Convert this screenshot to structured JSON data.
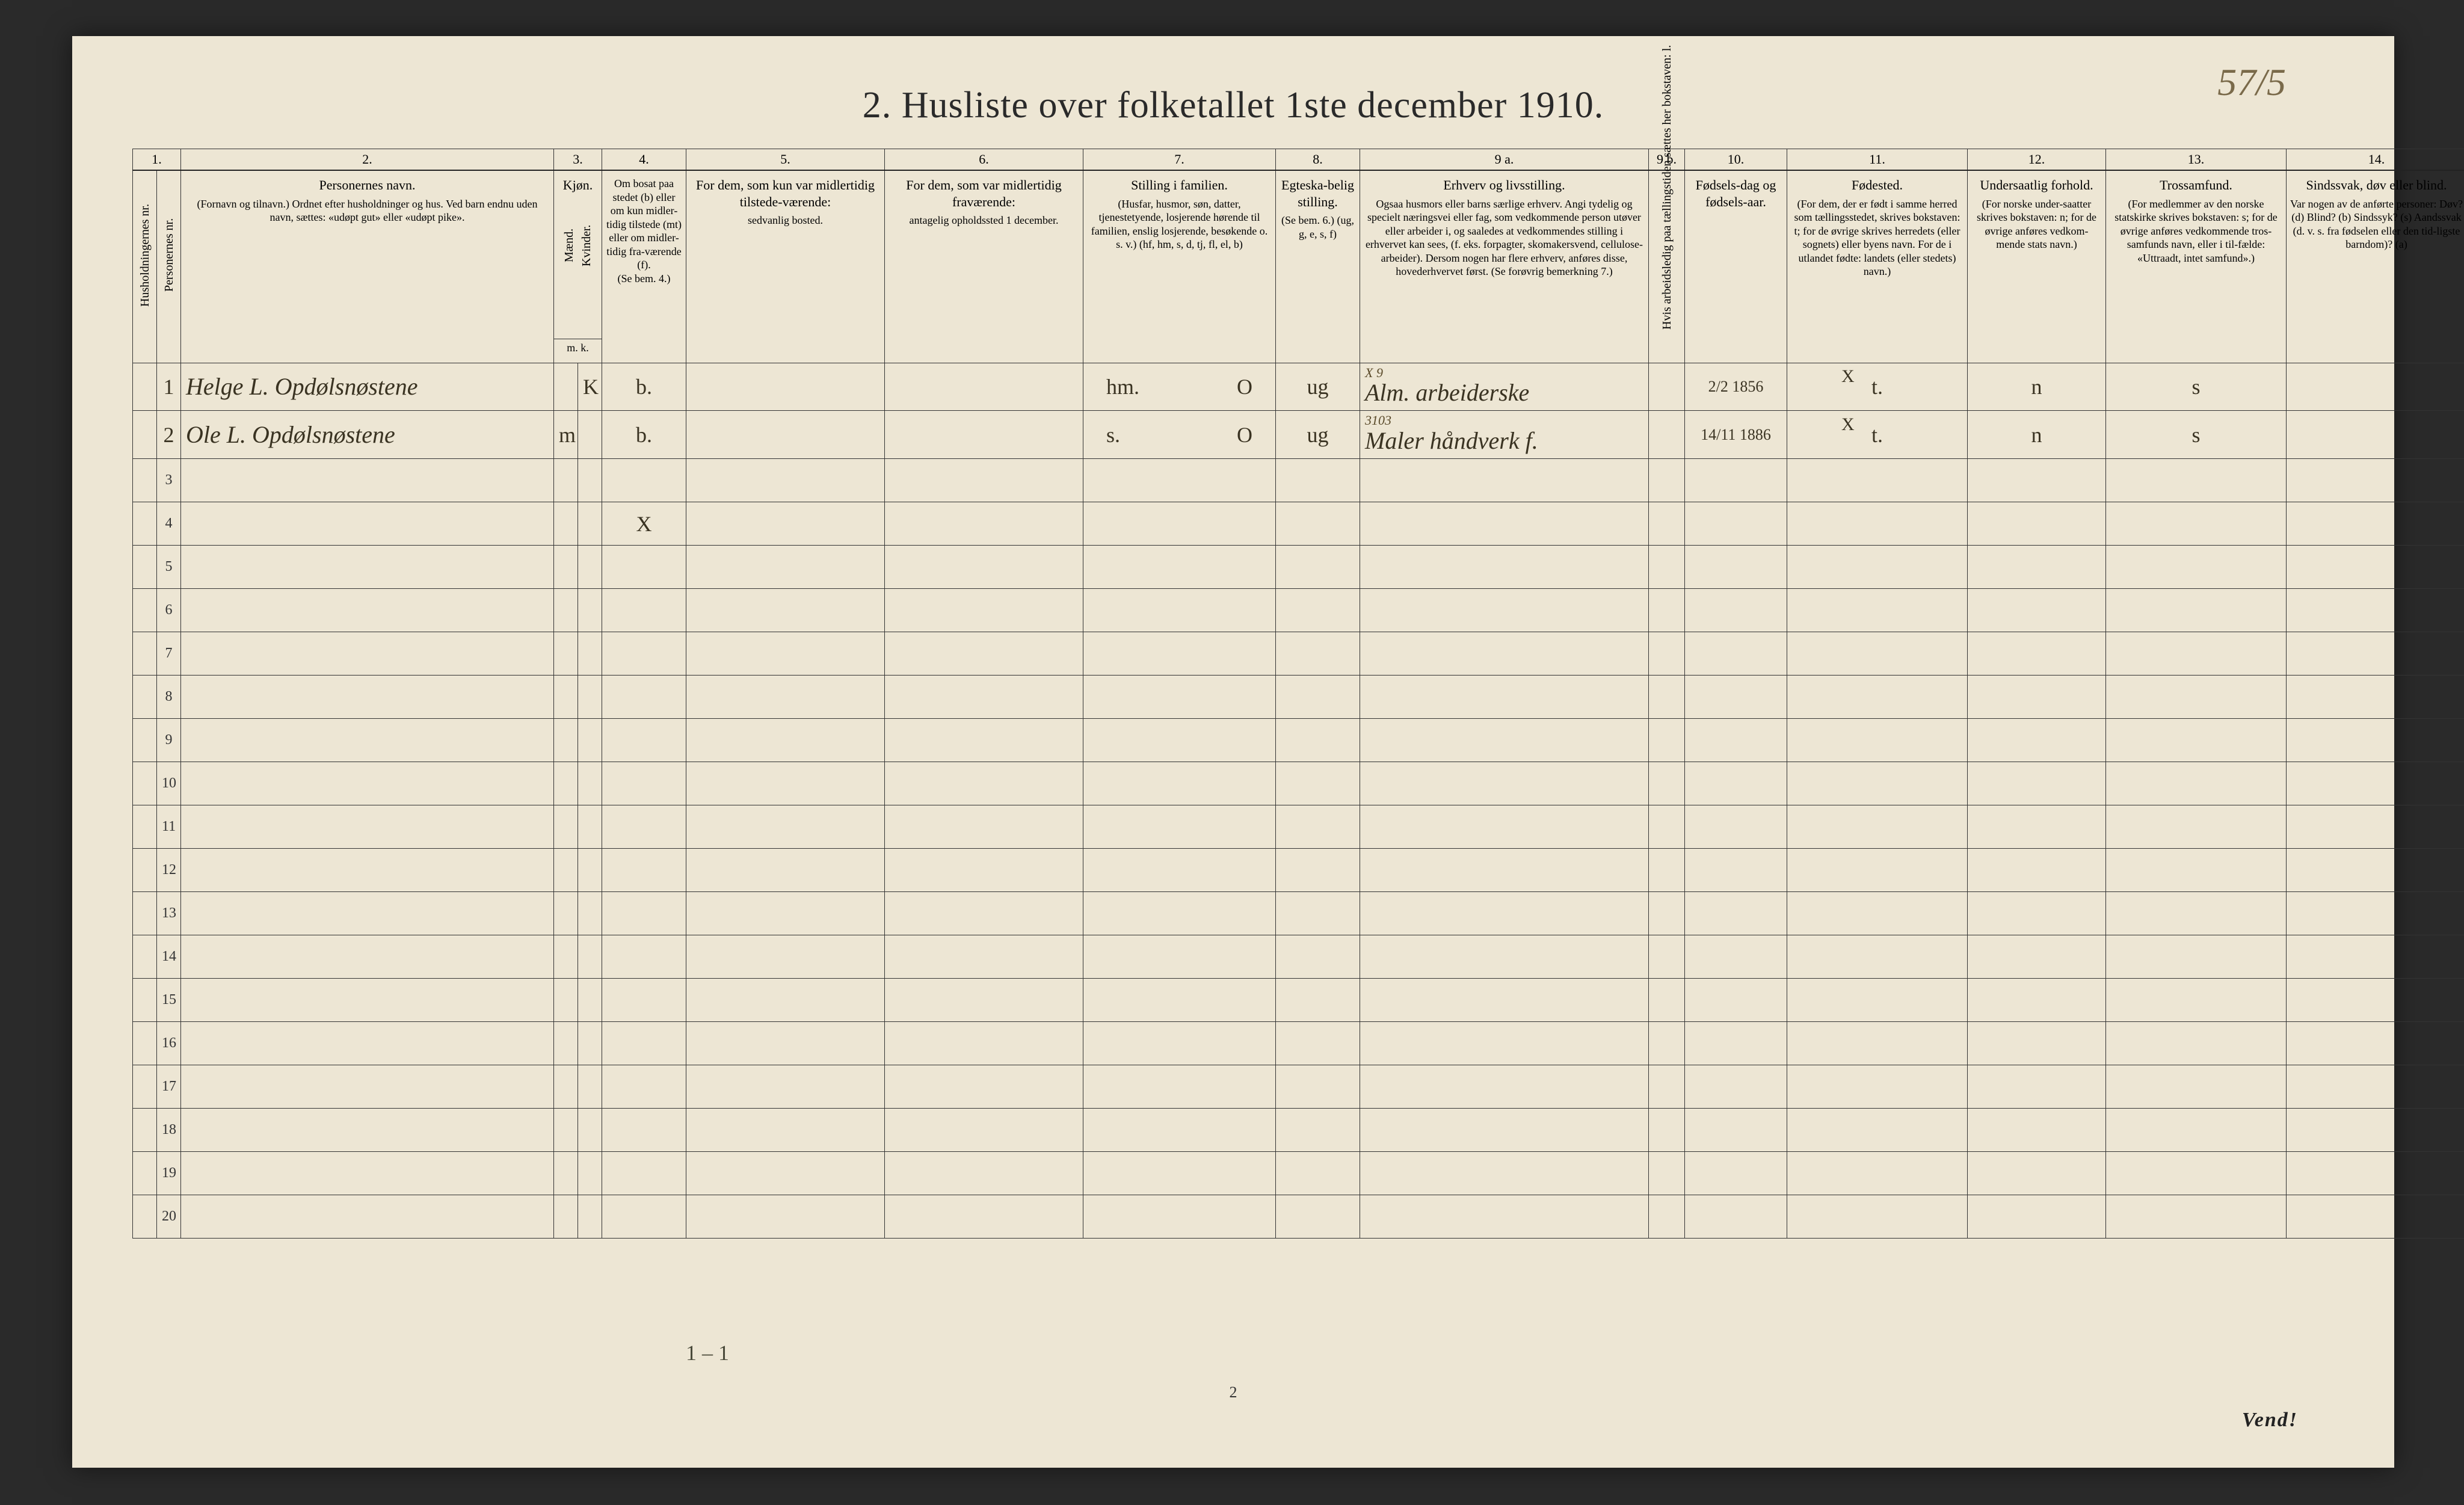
{
  "page": {
    "corner_note": "57/5",
    "title": "2.  Husliste over folketallet 1ste december 1910.",
    "footer_page": "2",
    "footer_vend": "Vend!",
    "tally": "1 – 1"
  },
  "colors": {
    "paper": "#ede6d4",
    "ink": "#2a2a2a",
    "handwriting": "#3a3322",
    "pencil": "#7a6a4a",
    "rule": "#333333"
  },
  "columns": {
    "numbers": [
      "1.",
      "",
      "2.",
      "3.",
      "",
      "4.",
      "5.",
      "6.",
      "7.",
      "8.",
      "9 a.",
      "9 b.",
      "10.",
      "11.",
      "12.",
      "13.",
      "14."
    ],
    "headers": {
      "c1": "Husholdningernes nr.",
      "c1b": "Personernes nr.",
      "c2_main": "Personernes navn.",
      "c2_sub": "(Fornavn og tilnavn.)\nOrdnet efter husholdninger og hus.\nVed barn endnu uden navn, sættes: «udøpt gut» eller «udøpt pike».",
      "c3_main": "Kjøn.",
      "c3_m": "Mænd.",
      "c3_k": "Kvinder.",
      "c3_mk": "m.  k.",
      "c4_main": "Om bosat paa stedet (b) eller om kun midler-tidig tilstede (mt) eller om midler-tidig fra-værende (f).",
      "c4_sub": "(Se bem. 4.)",
      "c5_main": "For dem, som kun var midlertidig tilstede-værende:",
      "c5_sub": "sedvanlig bosted.",
      "c6_main": "For dem, som var midlertidig fraværende:",
      "c6_sub": "antagelig opholdssted 1 december.",
      "c7_main": "Stilling i familien.",
      "c7_sub": "(Husfar, husmor, søn, datter, tjenestetyende, losjerende hørende til familien, enslig losjerende, besøkende o. s. v.)\n(hf, hm, s, d, tj, fl, el, b)",
      "c8_main": "Egteska-belig stilling.",
      "c8_sub": "(Se bem. 6.)\n(ug, g, e, s, f)",
      "c9a_main": "Erhverv og livsstilling.",
      "c9a_sub": "Ogsaa husmors eller barns særlige erhverv. Angi tydelig og specielt næringsvei eller fag, som vedkommende person utøver eller arbeider i, og saaledes at vedkommendes stilling i erhvervet kan sees, (f. eks. forpagter, skomakersvend, cellulose-arbeider). Dersom nogen har flere erhverv, anføres disse, hovederhvervet først.\n(Se forøvrig bemerkning 7.)",
      "c9b": "Hvis arbeidsledig paa tællingstiden sættes her bokstaven: l.",
      "c10_main": "Fødsels-dag og fødsels-aar.",
      "c11_main": "Fødested.",
      "c11_sub": "(For dem, der er født i samme herred som tællingsstedet, skrives bokstaven: t; for de øvrige skrives herredets (eller sognets) eller byens navn. For de i utlandet fødte: landets (eller stedets) navn.)",
      "c12_main": "Undersaatlig forhold.",
      "c12_sub": "(For norske under-saatter skrives bokstaven: n; for de øvrige anføres vedkom-mende stats navn.)",
      "c13_main": "Trossamfund.",
      "c13_sub": "(For medlemmer av den norske statskirke skrives bokstaven: s; for de øvrige anføres vedkommende tros-samfunds navn, eller i til-fælde: «Uttraadt, intet samfund».)",
      "c14_main": "Sindssvak, døv eller blind.",
      "c14_sub": "Var nogen av de anførte personer:\nDøv?        (d)\nBlind?      (b)\nSindssyk? (s)\nAandssvak (d. v. s. fra fødselen eller den tid-ligste barndom)? (a)"
    }
  },
  "rows": [
    {
      "pnr": "1",
      "name": "Helge L. Opdølsnøstene",
      "m": "",
      "k": "K",
      "bosat": "b.",
      "tilstede": "",
      "frav": "",
      "stilling_fam": "hm.",
      "stilling_o": "O",
      "egte": "ug",
      "erhverv_ann": "X 9",
      "erhverv": "Alm. arbeiderske",
      "arb": "",
      "fdag": "2/2 1856",
      "fsted_x": "X",
      "fsted": "t.",
      "under": "n",
      "tros": "s",
      "sind": ""
    },
    {
      "pnr": "2",
      "name": "Ole L. Opdølsnøstene",
      "m": "m",
      "k": "",
      "bosat": "b.",
      "tilstede": "",
      "frav": "",
      "stilling_fam": "s.",
      "stilling_o": "O",
      "egte": "ug",
      "erhverv_ann": "3103",
      "erhverv": "Maler  håndverk  f.",
      "arb": "",
      "fdag": "14/11 1886",
      "fsted_x": "X",
      "fsted": "t.",
      "under": "n",
      "tros": "s",
      "sind": ""
    }
  ],
  "row4_mark": "X",
  "blank_row_count": 18
}
